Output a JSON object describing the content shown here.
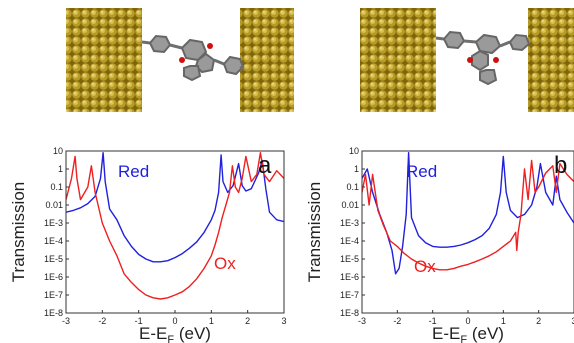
{
  "figure": {
    "colors": {
      "red": "#ee2020",
      "blue": "#2020dd",
      "gold_light": "#d8c24a",
      "gold_dark": "#8a6f10",
      "molecule_gray": "#8a8a8a",
      "oxygen_red": "#cc1111"
    }
  },
  "chart_data": [
    {
      "type": "line",
      "panel_label": "a",
      "xlabel": "E-E_F (eV)",
      "ylabel": "Transmission",
      "log_y": true,
      "xlim": [
        -3,
        3
      ],
      "ylim": [
        1e-08,
        10
      ],
      "x_ticks": [
        "-3",
        "-2",
        "-1",
        "0",
        "1",
        "2",
        "3"
      ],
      "y_ticks": [
        "10",
        "1",
        "0.1",
        "0.01",
        "1E-3",
        "1E-4",
        "1E-5",
        "1E-6",
        "1E-7",
        "1E-8"
      ],
      "annotations": [
        {
          "text": "Red",
          "series": "Red"
        },
        {
          "text": "Ox",
          "series": "Ox"
        }
      ],
      "series": [
        {
          "name": "Red",
          "color": "#2020dd",
          "x": [
            -3.0,
            -2.8,
            -2.6,
            -2.4,
            -2.2,
            -2.05,
            -1.98,
            -1.92,
            -1.8,
            -1.6,
            -1.4,
            -1.2,
            -1.0,
            -0.8,
            -0.6,
            -0.4,
            -0.2,
            0.0,
            0.2,
            0.4,
            0.6,
            0.8,
            1.0,
            1.1,
            1.2,
            1.27,
            1.32,
            1.45,
            1.6,
            1.75,
            1.85,
            1.95,
            2.1,
            2.3,
            2.4,
            2.5,
            2.6,
            2.8,
            3.0
          ],
          "y": [
            0.004,
            0.005,
            0.007,
            0.012,
            0.03,
            0.3,
            8,
            0.2,
            0.006,
            0.0015,
            0.0002,
            5e-05,
            1.8e-05,
            1e-05,
            7e-06,
            7e-06,
            8e-06,
            1.2e-05,
            2e-05,
            4e-05,
            9e-05,
            0.0003,
            0.0015,
            0.005,
            0.05,
            6,
            0.2,
            0.05,
            0.12,
            2,
            0.12,
            0.06,
            0.08,
            0.6,
            3,
            0.08,
            0.004,
            0.0015,
            0.0012
          ]
        },
        {
          "name": "Ox",
          "color": "#ee2020",
          "x": [
            -3.0,
            -2.85,
            -2.75,
            -2.7,
            -2.6,
            -2.4,
            -2.3,
            -2.2,
            -2.0,
            -1.8,
            -1.6,
            -1.4,
            -1.2,
            -1.0,
            -0.8,
            -0.6,
            -0.4,
            -0.2,
            0.0,
            0.2,
            0.4,
            0.6,
            0.8,
            1.0,
            1.1,
            1.2,
            1.3,
            1.4,
            1.5,
            1.58,
            1.66,
            1.75,
            1.85,
            1.95,
            2.1,
            2.25,
            2.35,
            2.45,
            2.6,
            2.8,
            3.0
          ],
          "y": [
            0.02,
            0.3,
            5,
            0.3,
            0.02,
            0.1,
            1.5,
            0.05,
            0.001,
            0.0001,
            1.5e-05,
            1.5e-06,
            5e-07,
            2e-07,
            1e-07,
            7e-08,
            6e-08,
            7e-08,
            1e-07,
            1.5e-07,
            3e-07,
            8e-07,
            3e-06,
            1.5e-05,
            6e-05,
            0.0003,
            0.002,
            0.01,
            0.05,
            1.5,
            0.1,
            0.05,
            0.3,
            5,
            0.2,
            0.5,
            8,
            0.5,
            0.2,
            0.8,
            0.3
          ]
        }
      ]
    },
    {
      "type": "line",
      "panel_label": "b",
      "xlabel": "E-E_F (eV)",
      "ylabel": "Transmission",
      "log_y": true,
      "xlim": [
        -3,
        3
      ],
      "ylim": [
        1e-08,
        10
      ],
      "x_ticks": [
        "-3",
        "-2",
        "-1",
        "0",
        "1",
        "2",
        "3"
      ],
      "y_ticks": [
        "10",
        "1",
        "0.1",
        "0.01",
        "1E-3",
        "1E-4",
        "1E-5",
        "1E-6",
        "1E-7",
        "1E-8"
      ],
      "annotations": [
        {
          "text": "Red",
          "series": "Red"
        },
        {
          "text": "Ox",
          "series": "Ox"
        }
      ],
      "series": [
        {
          "name": "Red",
          "color": "#2020dd",
          "x": [
            -3.0,
            -2.85,
            -2.7,
            -2.5,
            -2.3,
            -2.15,
            -2.05,
            -1.95,
            -1.85,
            -1.75,
            -1.68,
            -1.6,
            -1.4,
            -1.2,
            -1.0,
            -0.8,
            -0.6,
            -0.4,
            -0.2,
            0.0,
            0.2,
            0.4,
            0.6,
            0.8,
            0.92,
            1.0,
            1.08,
            1.2,
            1.4,
            1.6,
            1.8,
            1.95,
            2.05,
            2.2,
            2.4,
            2.5,
            2.6,
            2.8,
            3.0
          ],
          "y": [
            0.3,
            1,
            0.05,
            0.003,
            0.0003,
            3e-05,
            1.5e-06,
            3e-06,
            5e-05,
            0.003,
            8,
            0.002,
            0.0002,
            8e-05,
            5e-05,
            4.5e-05,
            4.5e-05,
            5e-05,
            6e-05,
            8e-05,
            0.00012,
            0.0002,
            0.0005,
            0.003,
            0.05,
            5,
            0.05,
            0.005,
            0.002,
            0.003,
            0.01,
            0.1,
            2,
            0.05,
            0.01,
            0.4,
            0.02,
            0.004,
            0.001
          ]
        },
        {
          "name": "Ox",
          "color": "#ee2020",
          "x": [
            -3.0,
            -2.9,
            -2.8,
            -2.7,
            -2.55,
            -2.4,
            -2.2,
            -2.0,
            -1.8,
            -1.6,
            -1.4,
            -1.2,
            -1.0,
            -0.8,
            -0.6,
            -0.4,
            -0.2,
            0.0,
            0.2,
            0.4,
            0.6,
            0.8,
            1.0,
            1.2,
            1.35,
            1.38,
            1.42,
            1.5,
            1.6,
            1.7,
            1.8,
            1.9,
            2.0,
            2.2,
            2.4,
            2.5,
            2.6,
            2.8,
            3.0
          ],
          "y": [
            0.05,
            0.5,
            0.01,
            0.5,
            0.005,
            0.0008,
            0.0001,
            5e-05,
            2e-05,
            1e-05,
            6e-06,
            4e-06,
            3e-06,
            2.5e-06,
            2.5e-06,
            3e-06,
            4e-06,
            5e-06,
            7e-06,
            1e-05,
            1.5e-05,
            2.5e-05,
            5e-05,
            0.0001,
            0.0003,
            3e-05,
            0.0003,
            0.003,
            1,
            0.02,
            3,
            0.05,
            0.1,
            0.6,
            1.5,
            0.05,
            2,
            0.5,
            0.2
          ]
        }
      ]
    }
  ]
}
